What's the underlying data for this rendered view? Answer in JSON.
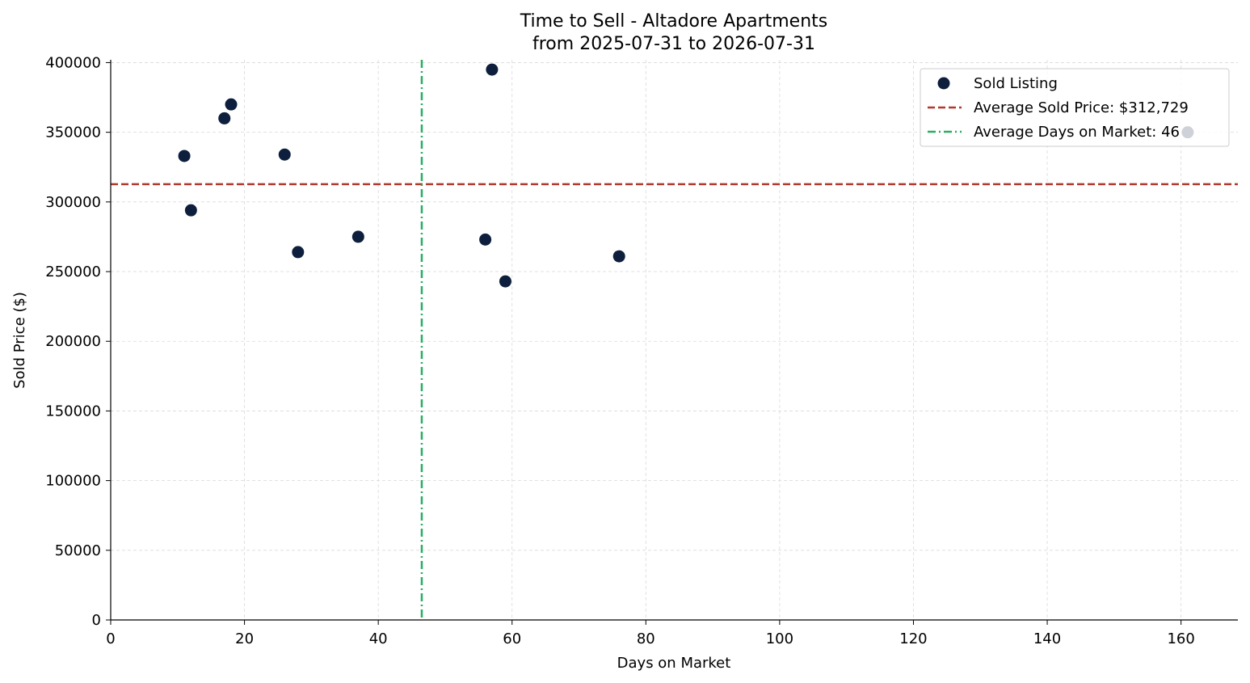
{
  "chart_data": {
    "type": "scatter",
    "title": "Time to Sell - Altadore Apartments",
    "subtitle": "from 2025-07-31 to 2026-07-31",
    "xlabel": "Days on Market",
    "ylabel": "Sold Price ($)",
    "xlim": [
      0,
      168.5
    ],
    "ylim": [
      0,
      402000
    ],
    "x_ticks": [
      0,
      20,
      40,
      60,
      80,
      100,
      120,
      140,
      160
    ],
    "y_ticks": [
      0,
      50000,
      100000,
      150000,
      200000,
      250000,
      300000,
      350000,
      400000
    ],
    "grid": true,
    "legend_position": "top-right",
    "series": [
      {
        "name": "Sold Listing",
        "color": "#0d1f3c",
        "points": [
          {
            "x": 11,
            "y": 333000
          },
          {
            "x": 12,
            "y": 294000
          },
          {
            "x": 17,
            "y": 360000
          },
          {
            "x": 18,
            "y": 370000
          },
          {
            "x": 26,
            "y": 334000
          },
          {
            "x": 28,
            "y": 264000
          },
          {
            "x": 37,
            "y": 275000
          },
          {
            "x": 56,
            "y": 273000
          },
          {
            "x": 57,
            "y": 395000
          },
          {
            "x": 59,
            "y": 243000
          },
          {
            "x": 76,
            "y": 261000
          },
          {
            "x": 161,
            "y": 350000
          }
        ]
      }
    ],
    "reference_lines": [
      {
        "name": "Average Sold Price: $312,729",
        "orientation": "horizontal",
        "value": 312729,
        "style": "dashed",
        "color": "#b03a2e"
      },
      {
        "name": "Average Days on Market: 46",
        "orientation": "vertical",
        "value": 46.5,
        "style": "dashdot",
        "color": "#27ae60"
      }
    ]
  }
}
